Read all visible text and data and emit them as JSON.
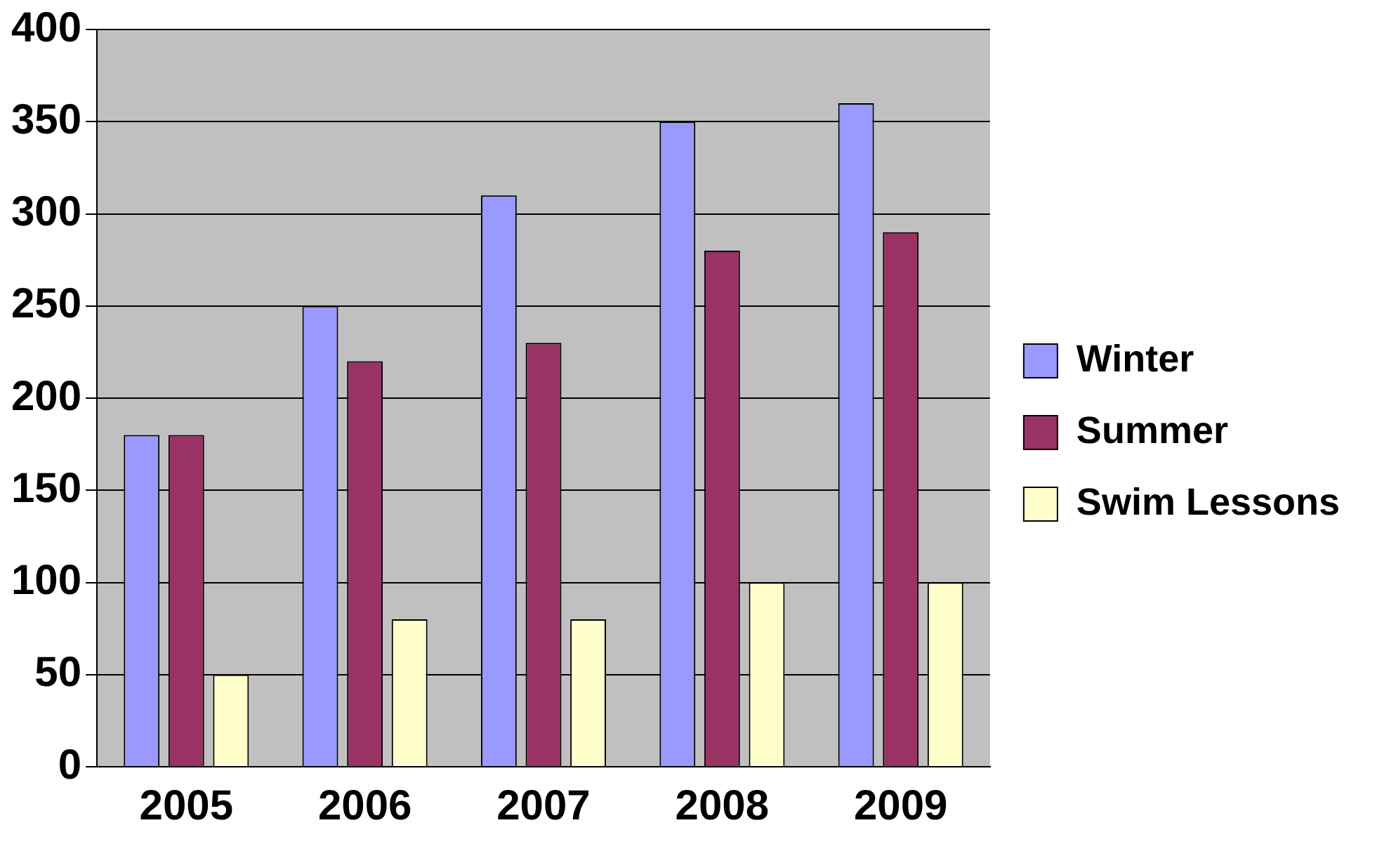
{
  "chart_data": {
    "type": "bar",
    "categories": [
      "2005",
      "2006",
      "2007",
      "2008",
      "2009"
    ],
    "series": [
      {
        "name": "Winter",
        "color": "#9999ff",
        "values": [
          180,
          250,
          310,
          350,
          360
        ]
      },
      {
        "name": "Summer",
        "color": "#993366",
        "values": [
          180,
          220,
          230,
          280,
          290
        ]
      },
      {
        "name": "Swim Lessons",
        "color": "#ffffcc",
        "values": [
          50,
          80,
          80,
          100,
          100
        ]
      }
    ],
    "ylim": [
      0,
      400
    ],
    "yticks": [
      0,
      50,
      100,
      150,
      200,
      250,
      300,
      350,
      400
    ],
    "grid": "y",
    "legend": "right"
  }
}
